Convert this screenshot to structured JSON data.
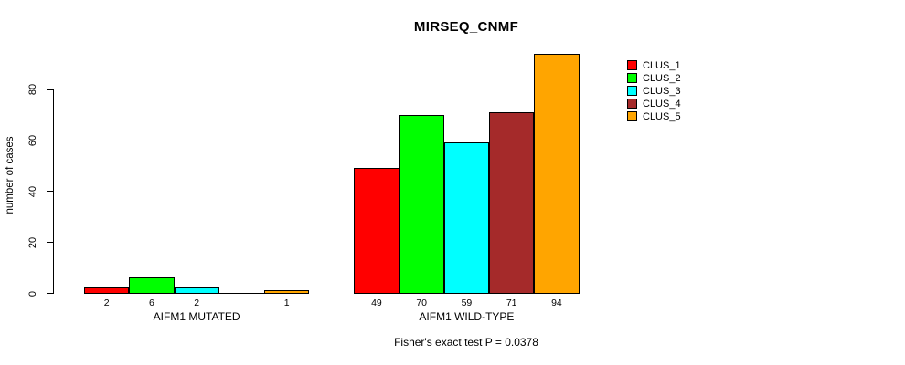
{
  "chart_data": {
    "type": "bar",
    "title": "MIRSEQ_CNMF",
    "ylabel": "number of cases",
    "xlabel": "",
    "ylim": [
      0,
      94
    ],
    "yticks": [
      0,
      20,
      40,
      60,
      80
    ],
    "grid": false,
    "legend_position": "right",
    "categories": [
      "AIFM1 MUTATED",
      "AIFM1 WILD-TYPE"
    ],
    "series": [
      {
        "name": "CLUS_1",
        "color": "#FF0000",
        "values": [
          2,
          49
        ]
      },
      {
        "name": "CLUS_2",
        "color": "#00FF00",
        "values": [
          6,
          70
        ]
      },
      {
        "name": "CLUS_3",
        "color": "#00FFFF",
        "values": [
          2,
          59
        ]
      },
      {
        "name": "CLUS_4",
        "color": "#A52A2A",
        "values": [
          0,
          71
        ]
      },
      {
        "name": "CLUS_5",
        "color": "#FFA500",
        "values": [
          1,
          94
        ]
      }
    ],
    "bar_labels": [
      [
        "2",
        "6",
        "2",
        "",
        "1"
      ],
      [
        "49",
        "70",
        "59",
        "71",
        "94"
      ]
    ],
    "annotation": "Fisher's exact test P = 0.0378",
    "axis_color": "#000000",
    "bar_border_color": "#000000"
  }
}
